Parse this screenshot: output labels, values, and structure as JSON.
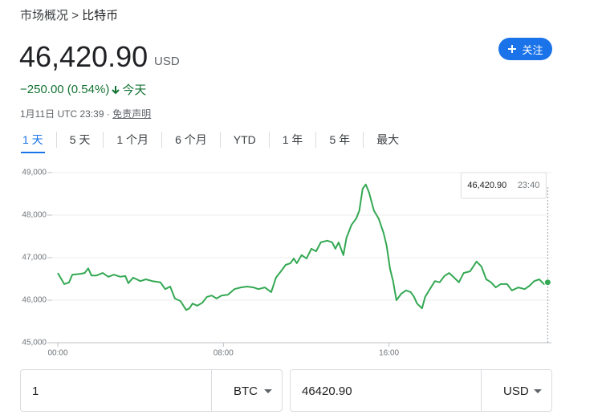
{
  "breadcrumb": {
    "parent": "市场概况",
    "separator": ">",
    "current": "比特币"
  },
  "quote": {
    "price": "46,420.90",
    "currency": "USD",
    "change": "−250.00 (0.54%)",
    "period": "今天",
    "timestamp": "1月11日 UTC 23:39 ·",
    "disclaimer": "免责声明"
  },
  "follow_button": "关注",
  "range_tabs": [
    "1 天",
    "5 天",
    "1 个月",
    "6 个月",
    "YTD",
    "1 年",
    "5 年",
    "最大"
  ],
  "selected_tab": 0,
  "chart_data": {
    "type": "line",
    "color": "#34a853",
    "x": [
      0,
      0.31,
      0.54,
      0.7,
      1.09,
      1.3,
      1.47,
      1.63,
      1.86,
      2.17,
      2.44,
      2.71,
      3.02,
      3.26,
      3.41,
      3.64,
      3.99,
      4.26,
      4.57,
      4.96,
      5.19,
      5.43,
      5.66,
      5.93,
      6.2,
      6.36,
      6.51,
      6.74,
      6.98,
      7.21,
      7.44,
      7.67,
      7.91,
      8.22,
      8.53,
      8.84,
      9.15,
      9.46,
      9.69,
      10.0,
      10.31,
      10.54,
      10.78,
      11.01,
      11.24,
      11.4,
      11.55,
      11.78,
      12.02,
      12.25,
      12.48,
      12.71,
      13.02,
      13.26,
      13.41,
      13.57,
      13.8,
      13.95,
      14.19,
      14.42,
      14.57,
      14.73,
      14.88,
      15.04,
      15.27,
      15.5,
      15.74,
      15.89,
      16.05,
      16.2,
      16.36,
      16.59,
      16.82,
      17.05,
      17.21,
      17.36,
      17.6,
      17.75,
      17.98,
      18.22,
      18.45,
      18.68,
      18.91,
      19.15,
      19.38,
      19.61,
      19.92,
      20.23,
      20.47,
      20.7,
      20.93,
      21.16,
      21.4,
      21.71,
      21.94,
      22.25,
      22.56,
      22.79,
      23.02,
      23.26,
      23.49,
      23.67
    ],
    "values": [
      46640,
      46380,
      46415,
      46600,
      46620,
      46640,
      46750,
      46580,
      46580,
      46640,
      46550,
      46600,
      46550,
      46570,
      46400,
      46530,
      46450,
      46490,
      46450,
      46420,
      46260,
      46320,
      46040,
      45980,
      45770,
      45810,
      45920,
      45870,
      45940,
      46080,
      46110,
      46040,
      46110,
      46130,
      46260,
      46300,
      46320,
      46300,
      46260,
      46300,
      46190,
      46530,
      46680,
      46830,
      46870,
      46980,
      46870,
      47060,
      46980,
      47210,
      47150,
      47360,
      47400,
      47360,
      47210,
      47360,
      47060,
      47470,
      47770,
      47920,
      48110,
      48620,
      48720,
      48530,
      48110,
      47920,
      47580,
      47280,
      46740,
      46450,
      46000,
      46150,
      46230,
      46190,
      46080,
      45920,
      45810,
      46080,
      46260,
      46450,
      46420,
      46570,
      46640,
      46530,
      46420,
      46640,
      46680,
      46910,
      46790,
      46490,
      46420,
      46300,
      46380,
      46380,
      46230,
      46300,
      46260,
      46340,
      46450,
      46490,
      46380,
      46420.9
    ],
    "xlim": [
      0,
      23.85
    ],
    "xticks": [
      {
        "value": 0,
        "label": "00:00"
      },
      {
        "value": 8,
        "label": "08:00"
      },
      {
        "value": 16,
        "label": "16:00"
      }
    ],
    "ylim": [
      45000,
      49000
    ],
    "yticks": [
      {
        "value": 45000,
        "label": "45,000"
      },
      {
        "value": 46000,
        "label": "46,000"
      },
      {
        "value": 47000,
        "label": "47,000"
      },
      {
        "value": 48000,
        "label": "48,000"
      },
      {
        "value": 49000,
        "label": "49,000"
      }
    ],
    "grid": true,
    "tooltip": {
      "value": "46,420.90",
      "time": "23:40"
    }
  },
  "converter": {
    "amount": "1",
    "from": "BTC",
    "result": "46420.90",
    "to": "USD"
  }
}
